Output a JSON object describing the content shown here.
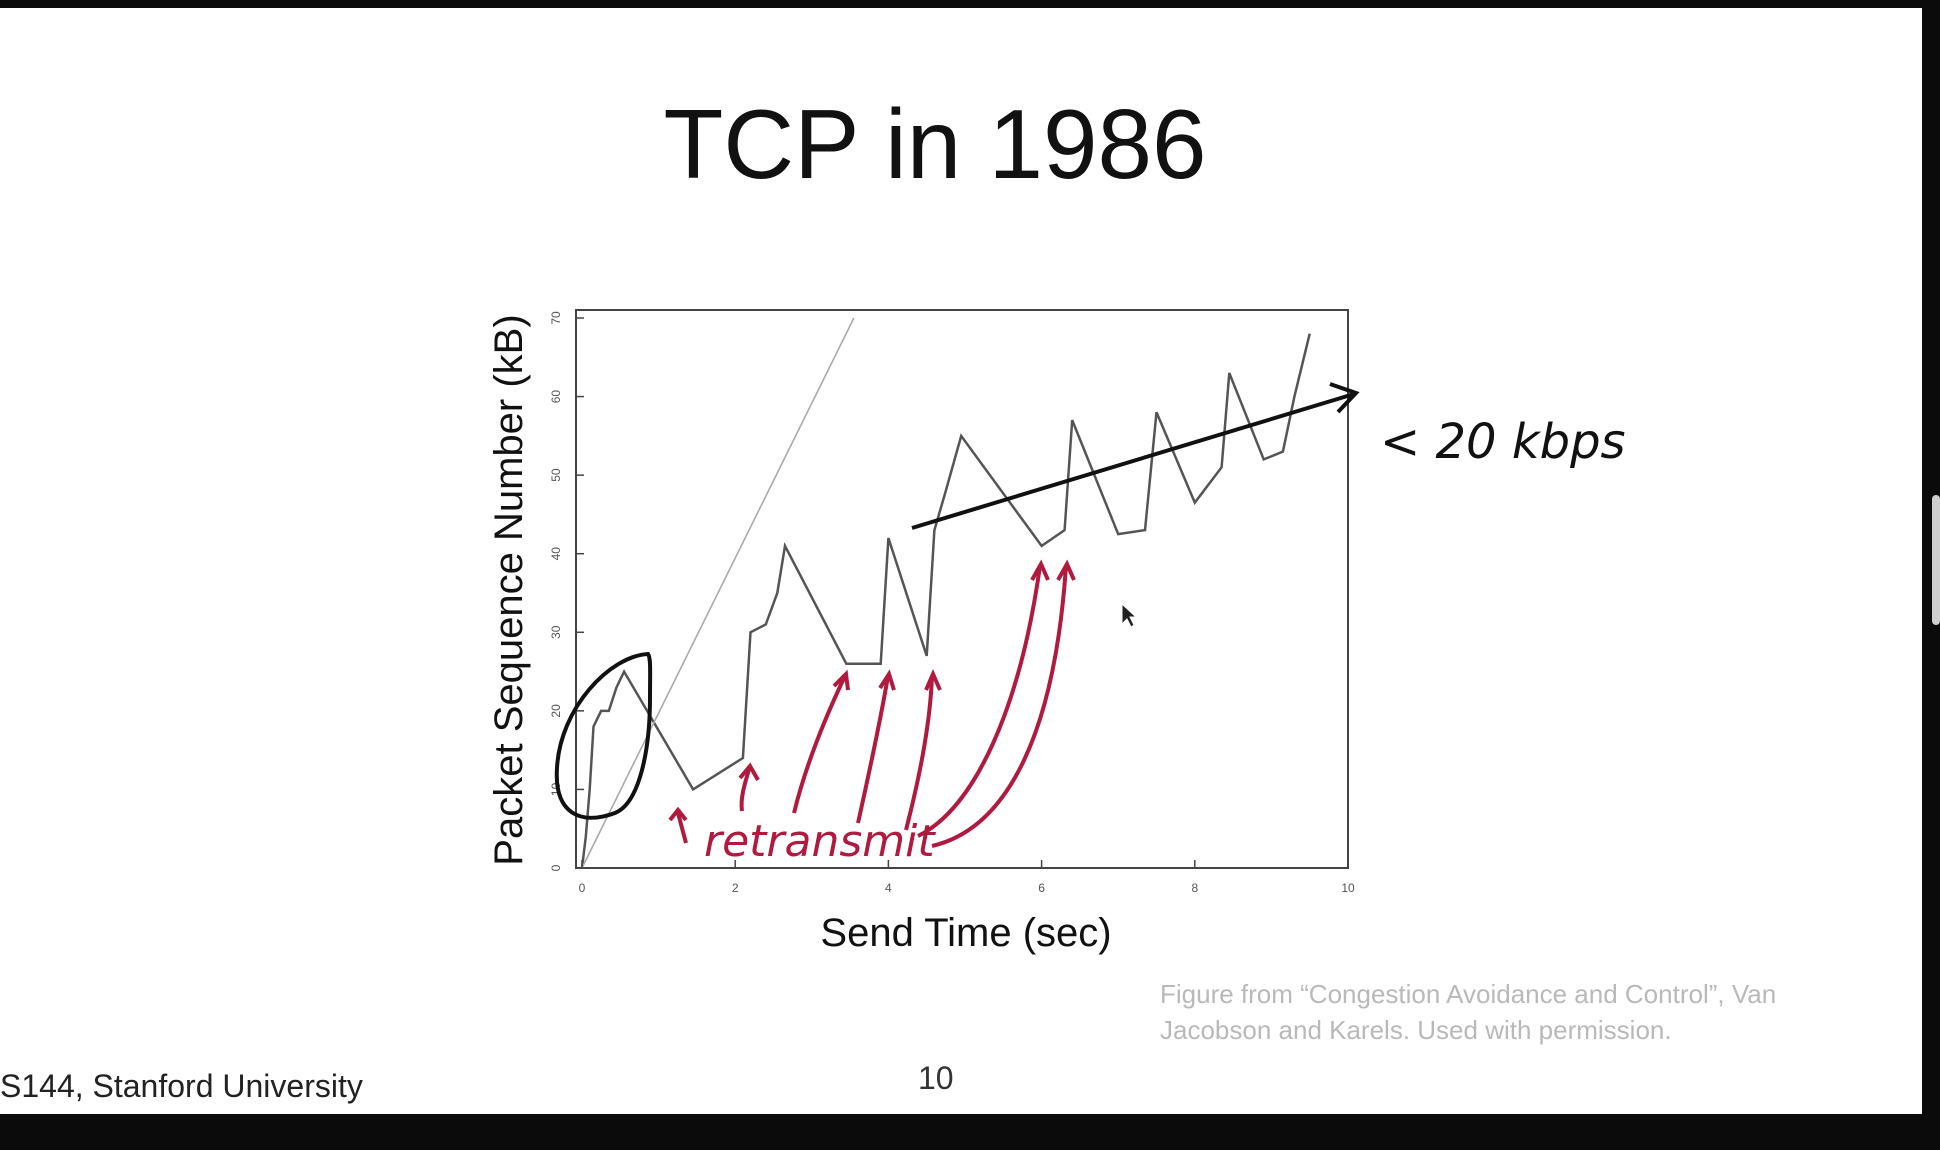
{
  "slide": {
    "title": "TCP in 1986",
    "caption": "Figure from “Congestion Avoidance and Control”, Van Jacobson and Karels. Used with permission.",
    "footer_left": "S144, Stanford University",
    "page_number": "10"
  },
  "annotations": {
    "throughput": "< 20 kbps",
    "retransmit": "retransmit"
  },
  "colors": {
    "annotation_red": "#b01a3e",
    "annotation_black": "#111111",
    "trace": "#555555",
    "reference_line": "#aaaaaa"
  },
  "chart_data": {
    "type": "line",
    "xlabel": "Send Time (sec)",
    "ylabel": "Packet Sequence Number (kB)",
    "xlim": [
      0,
      10
    ],
    "ylim": [
      0,
      70
    ],
    "xticks": [
      "0",
      "2",
      "4",
      "6",
      "8",
      "10"
    ],
    "yticks": [
      "0",
      "10",
      "20",
      "30",
      "40",
      "50",
      "60",
      "70"
    ],
    "grid": false,
    "series": [
      {
        "points": [
          [
            0,
            0
          ],
          [
            0.05,
            4
          ],
          [
            0.1,
            10
          ],
          [
            0.15,
            18
          ],
          [
            0.25,
            20
          ],
          [
            0.35,
            20
          ],
          [
            0.45,
            23
          ],
          [
            0.55,
            25
          ],
          [
            1.45,
            10
          ],
          [
            2.1,
            14
          ],
          [
            2.2,
            30
          ],
          [
            2.4,
            31
          ],
          [
            2.55,
            35
          ],
          [
            2.65,
            41
          ],
          [
            3.45,
            26
          ],
          [
            3.9,
            26
          ],
          [
            4.0,
            42
          ],
          [
            4.5,
            27
          ],
          [
            4.6,
            43
          ],
          [
            4.75,
            48
          ],
          [
            4.95,
            55
          ],
          [
            6.0,
            41
          ],
          [
            6.3,
            43
          ],
          [
            6.4,
            57
          ],
          [
            7.0,
            42.5
          ],
          [
            7.35,
            43
          ],
          [
            7.5,
            58
          ],
          [
            8.0,
            46.5
          ],
          [
            8.35,
            51
          ],
          [
            8.45,
            63
          ],
          [
            8.9,
            52
          ],
          [
            9.15,
            53
          ],
          [
            9.3,
            60
          ],
          [
            9.5,
            68
          ]
        ]
      },
      {
        "points": [
          [
            0,
            0
          ],
          [
            3.55,
            70
          ]
        ]
      }
    ]
  }
}
